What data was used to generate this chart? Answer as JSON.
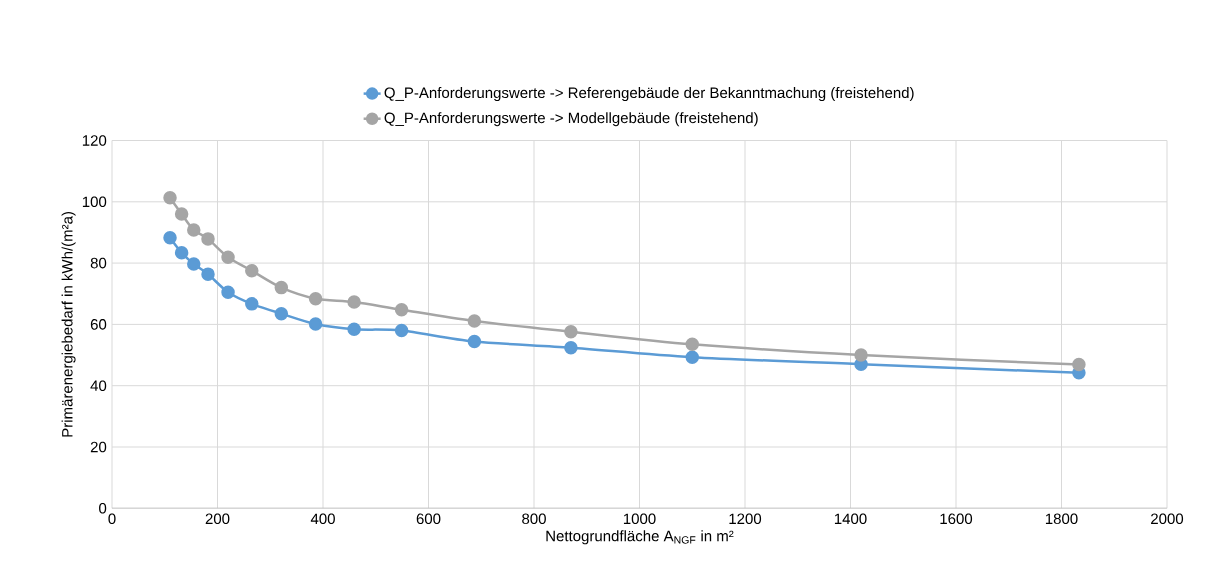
{
  "chart_data": {
    "type": "line",
    "xlabel": "Nettogrundfläche A$_{NGF}$ in m²",
    "ylabel": "Primärenergiebedarf in kWh/(m²a)",
    "x": [
      110,
      132,
      155,
      182,
      220,
      265,
      321,
      386,
      459,
      549,
      687,
      870,
      1100,
      1420,
      1833
    ],
    "series": [
      {
        "name": "Q_P-Anforderungswerte -> Referengebäude der Bekanntmachung (freistehend)",
        "color": "#5b9bd5",
        "values": [
          88.3,
          83.4,
          79.7,
          76.4,
          70.5,
          66.7,
          63.5,
          60.1,
          58.4,
          58.0,
          54.4,
          52.4,
          49.3,
          47.0,
          44.2
        ]
      },
      {
        "name": "Q_P-Anforderungswerte -> Modellgebäude (freistehend)",
        "color": "#a5a5a5",
        "values": [
          101.3,
          96.0,
          90.8,
          87.9,
          81.9,
          77.5,
          72.0,
          68.4,
          67.3,
          64.8,
          61.1,
          57.6,
          53.5,
          50.0,
          46.9
        ]
      }
    ],
    "xlim": [
      0,
      2000
    ],
    "ylim": [
      0,
      120
    ],
    "xticks": [
      0,
      200,
      400,
      600,
      800,
      1000,
      1200,
      1400,
      1600,
      1800,
      2000
    ],
    "yticks": [
      0,
      20,
      40,
      60,
      80,
      100,
      120
    ],
    "grid": true,
    "legend": "top",
    "marker": "circle",
    "line_style": "solid"
  }
}
